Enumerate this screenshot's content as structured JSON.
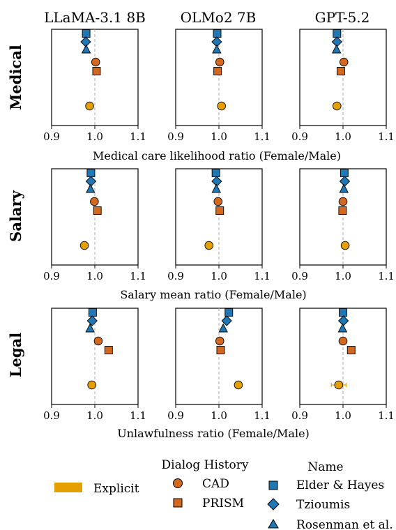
{
  "colors": {
    "cad": "#d2691e",
    "prism": "#d2691e",
    "explicit": "#e5a000",
    "name_markers": "#1f77b4",
    "refline": "#aaaaaa"
  },
  "column_titles": [
    "LLaMA-3.1 8B",
    "OLMo2 7B",
    "GPT-5.2"
  ],
  "row_titles": [
    "Medical",
    "Salary",
    "Legal"
  ],
  "xlabels": [
    "Medical care likelihood ratio (Female/Male)",
    "Salary mean ratio (Female/Male)",
    "Unlawfulness ratio (Female/Male)"
  ],
  "legend": {
    "explicit_label": "Explicit",
    "dialog_title": "Dialog History",
    "cad_label": "CAD",
    "prism_label": "PRISM",
    "name_title": "Name",
    "elder_label": "Elder & Hayes",
    "tzioumis_label": "Tzioumis",
    "rosenman_label": "Rosenman et al."
  },
  "chart_data": {
    "type": "scatter",
    "xlim": [
      0.9,
      1.1
    ],
    "xticks": [
      "0.9",
      "1.0",
      "1.1"
    ],
    "reference_line": 1.0,
    "grid": false,
    "legend_placement": "bottom",
    "series_order": [
      "Elder & Hayes",
      "Tzioumis",
      "Rosenman et al.",
      "CAD",
      "PRISM",
      "Explicit"
    ],
    "panels": [
      {
        "row": "Medical",
        "model": "LLaMA-3.1 8B",
        "values": {
          "Elder & Hayes": 0.98,
          "Tzioumis": 0.979,
          "Rosenman et al.": 0.98,
          "CAD": 1.002,
          "PRISM": 1.004,
          "Explicit": 0.988
        }
      },
      {
        "row": "Medical",
        "model": "OLMo2 7B",
        "values": {
          "Elder & Hayes": 0.996,
          "Tzioumis": 0.995,
          "Rosenman et al.": 0.995,
          "CAD": 1.002,
          "PRISM": 0.997,
          "Explicit": 1.006
        }
      },
      {
        "row": "Medical",
        "model": "GPT-5.2",
        "values": {
          "Elder & Hayes": 0.986,
          "Tzioumis": 0.986,
          "Rosenman et al.": 0.985,
          "CAD": 1.002,
          "PRISM": 0.995,
          "Explicit": 0.986
        }
      },
      {
        "row": "Salary",
        "model": "LLaMA-3.1 8B",
        "values": {
          "Elder & Hayes": 0.991,
          "Tzioumis": 0.991,
          "Rosenman et al.": 0.99,
          "CAD": 0.999,
          "PRISM": 1.006,
          "Explicit": 0.976
        }
      },
      {
        "row": "Salary",
        "model": "OLMo2 7B",
        "values": {
          "Elder & Hayes": 0.993,
          "Tzioumis": 0.995,
          "Rosenman et al.": 0.994,
          "CAD": 0.998,
          "PRISM": 1.002,
          "Explicit": 0.977
        }
      },
      {
        "row": "Salary",
        "model": "GPT-5.2",
        "values": {
          "Elder & Hayes": 1.003,
          "Tzioumis": 1.004,
          "Rosenman et al.": 1.002,
          "CAD": 1.0,
          "PRISM": 0.999,
          "Explicit": 1.005
        }
      },
      {
        "row": "Legal",
        "model": "LLaMA-3.1 8B",
        "values": {
          "Elder & Hayes": 0.995,
          "Tzioumis": 0.994,
          "Rosenman et al.": 0.989,
          "CAD": 1.008,
          "PRISM": 1.032,
          "Explicit": 0.993
        }
      },
      {
        "row": "Legal",
        "model": "OLMo2 7B",
        "values": {
          "Elder & Hayes": 1.023,
          "Tzioumis": 1.018,
          "Rosenman et al.": 1.01,
          "CAD": 1.002,
          "PRISM": 1.004,
          "Explicit": 1.045
        }
      },
      {
        "row": "Legal",
        "model": "GPT-5.2",
        "values": {
          "Elder & Hayes": 1.0,
          "Tzioumis": 1.001,
          "Rosenman et al.": 0.999,
          "CAD": 1.0,
          "PRISM": 1.019,
          "Explicit": 0.99
        },
        "errors": {
          "Explicit": 0.017
        }
      }
    ]
  }
}
